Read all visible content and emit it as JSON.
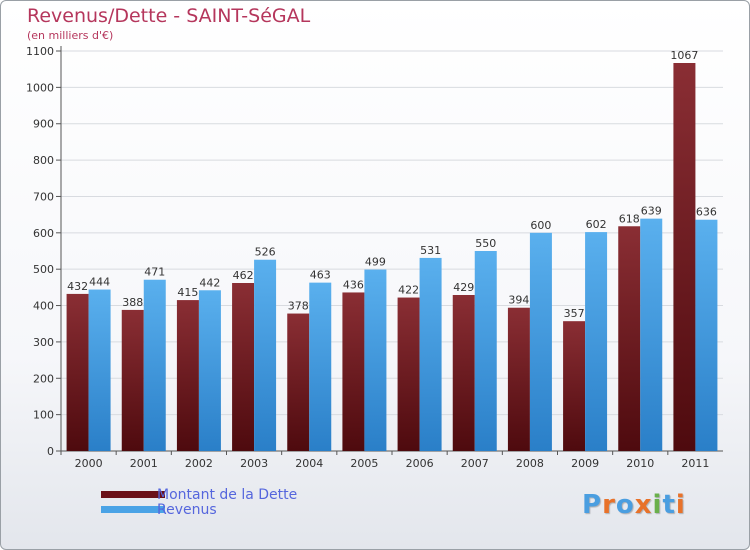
{
  "chart_data": {
    "type": "bar",
    "title": "Revenus/Dette - SAINT-SéGAL",
    "subtitle": "(en milliers d'€)",
    "categories": [
      "2000",
      "2001",
      "2002",
      "2003",
      "2004",
      "2005",
      "2006",
      "2007",
      "2008",
      "2009",
      "2010",
      "2011"
    ],
    "series": [
      {
        "name": "Montant de la Dette",
        "values": [
          432,
          388,
          415,
          462,
          378,
          436,
          422,
          429,
          394,
          357,
          618,
          1067
        ],
        "color": "#7a1c24"
      },
      {
        "name": "Revenus",
        "values": [
          444,
          471,
          442,
          526,
          463,
          499,
          531,
          550,
          600,
          602,
          639,
          636
        ],
        "color": "#4aa3e6"
      }
    ],
    "ylim": [
      0,
      1100
    ],
    "yticks": [
      0,
      100,
      200,
      300,
      400,
      500,
      600,
      700,
      800,
      900,
      1000,
      1100
    ],
    "grid": true,
    "legend_position": "bottom-left"
  },
  "logo": {
    "text": "Proxiti",
    "letter_colors": [
      "#4a9ee0",
      "#e8722a",
      "#4a9ee0",
      "#e8722a",
      "#6ab04c",
      "#4a9ee0",
      "#e8722a"
    ]
  }
}
